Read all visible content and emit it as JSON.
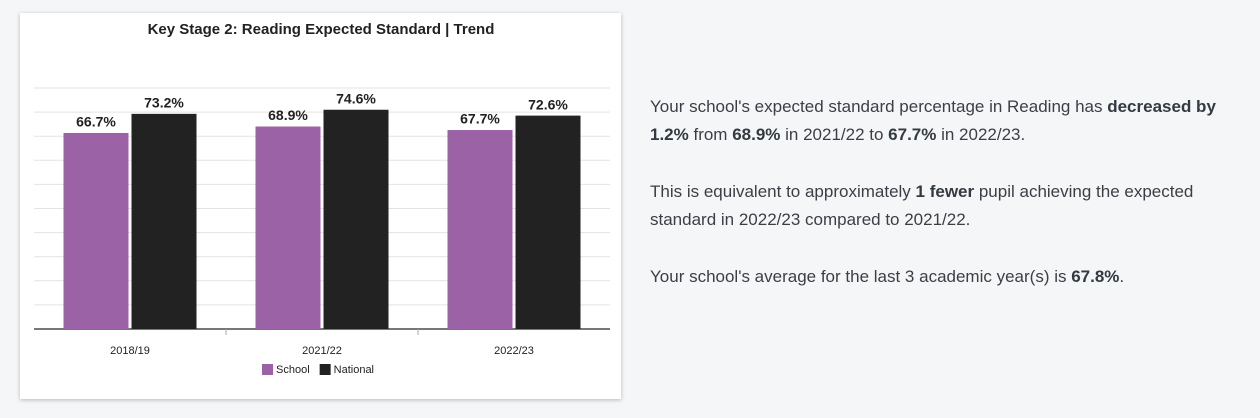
{
  "chart_data": {
    "type": "bar",
    "title": "Key Stage 2: Reading Expected Standard | Trend",
    "categories": [
      "2018/19",
      "2021/22",
      "2022/23"
    ],
    "series": [
      {
        "name": "School",
        "color": "#9b62a6",
        "values": [
          66.7,
          68.9,
          67.7
        ],
        "value_labels": [
          "66.7%",
          "68.9%",
          "67.7%"
        ]
      },
      {
        "name": "National",
        "color": "#222222",
        "values": [
          73.2,
          74.6,
          72.6
        ],
        "value_labels": [
          "73.2%",
          "74.6%",
          "72.6%"
        ]
      }
    ],
    "ylim": [
      0,
      82
    ],
    "grid": true,
    "legend": "bottom"
  },
  "summary": [
    [
      "Your school's expected standard percentage in Reading has ",
      "decreased by 1.2%",
      " from ",
      "68.9%",
      " in 2021/22 to ",
      "67.7%",
      " in 2022/23."
    ],
    [
      "This is equivalent to approximately ",
      "1 fewer",
      " pupil achieving the expected standard in 2022/23 compared to 2021/22."
    ],
    [
      "Your school's average for the last 3 academic year(s) is ",
      "67.8%",
      "."
    ]
  ]
}
